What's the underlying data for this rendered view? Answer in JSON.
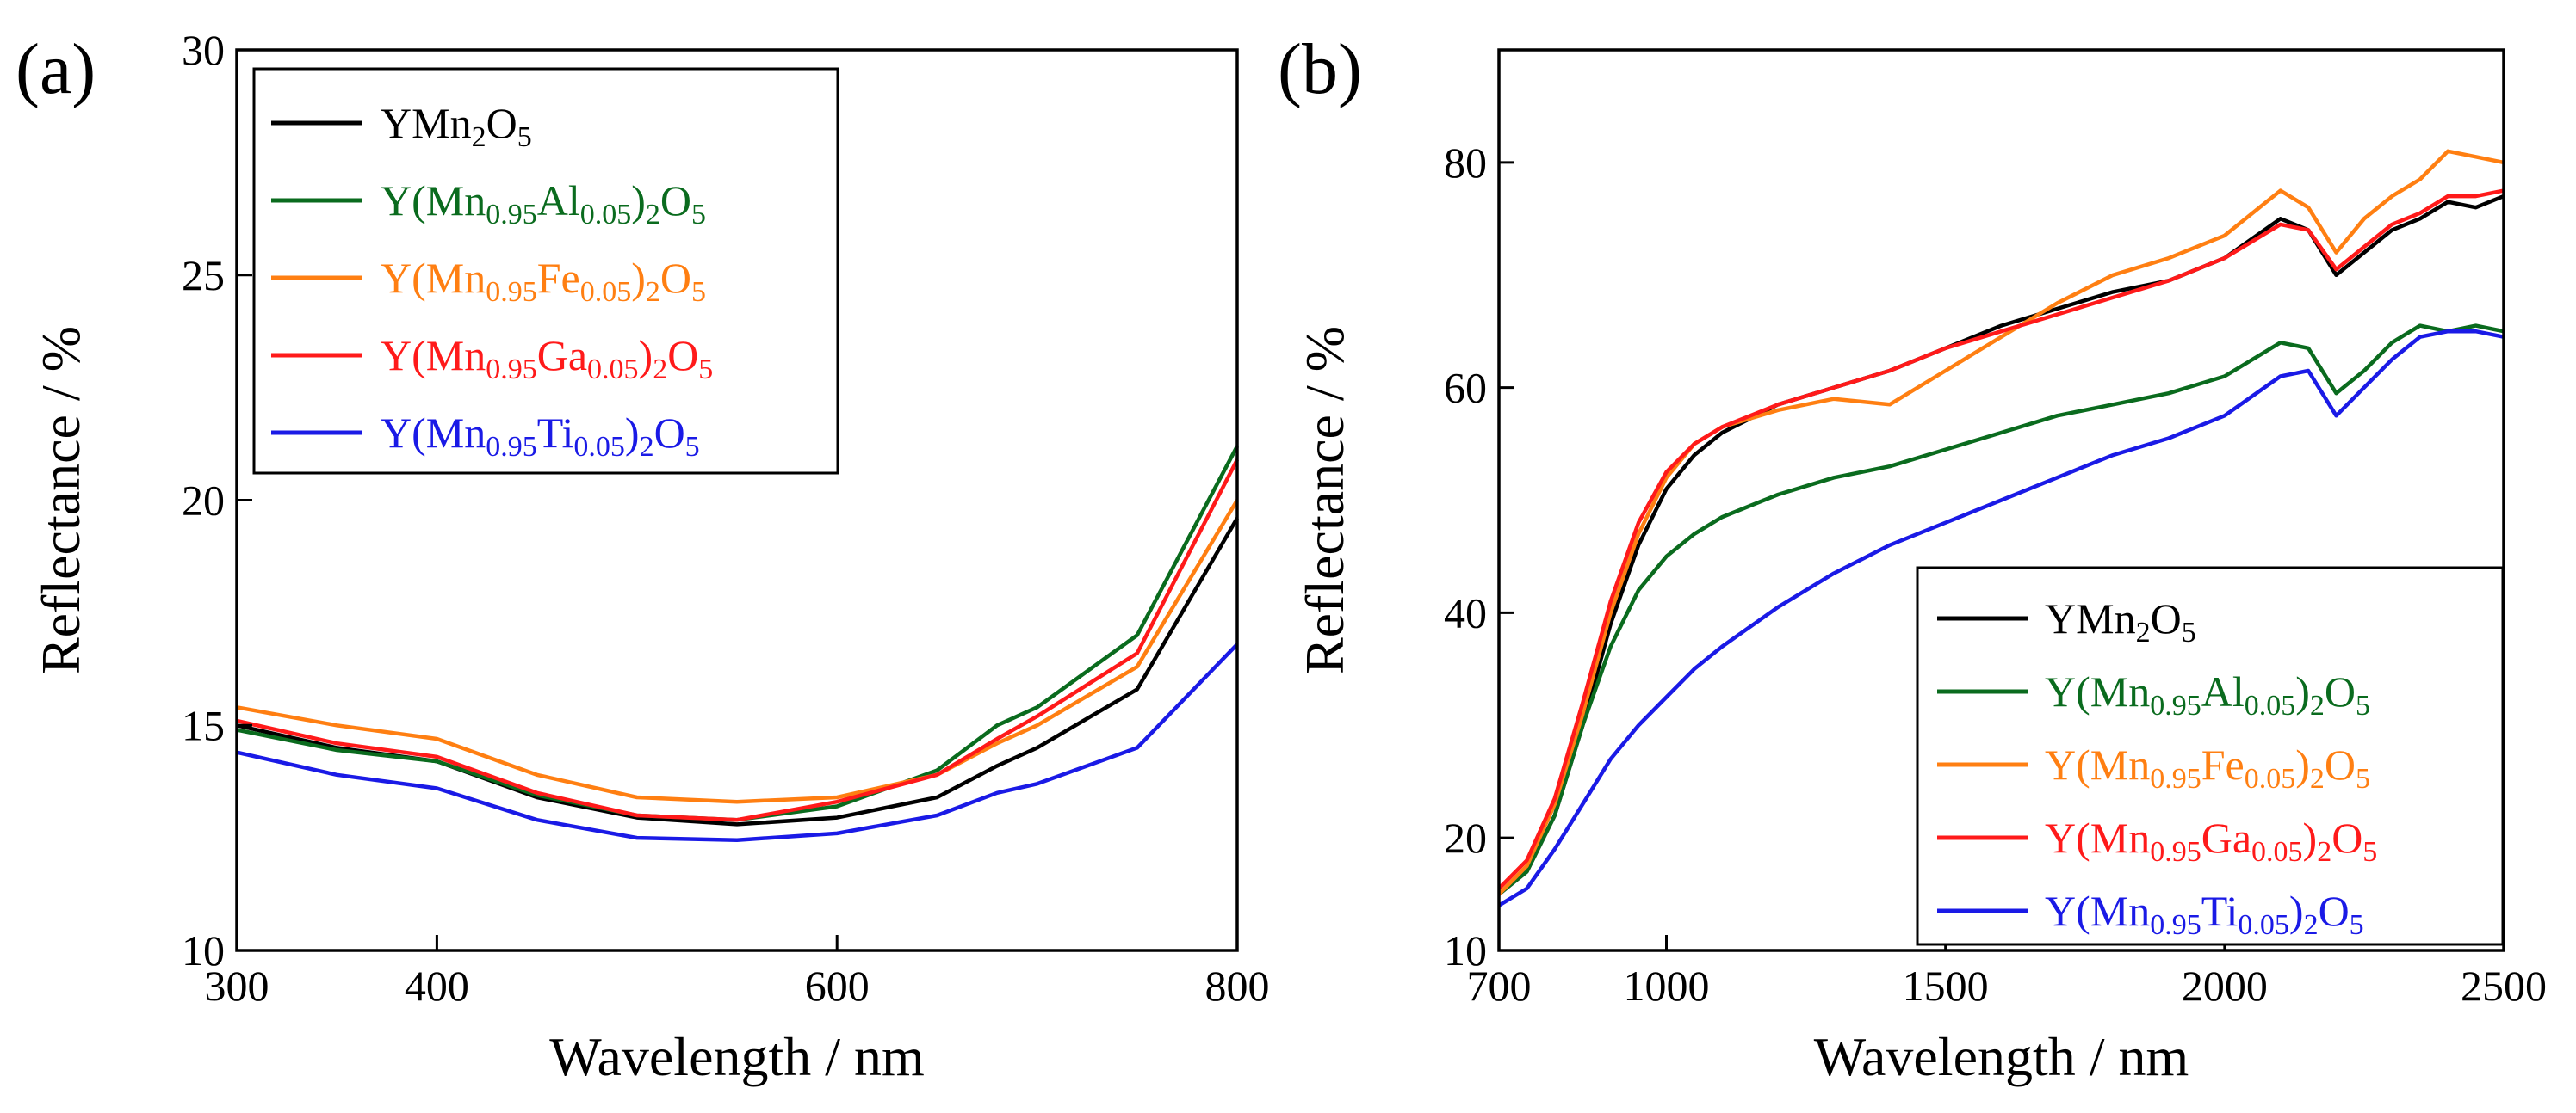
{
  "chart_data": [
    {
      "panel": "(a)",
      "type": "line",
      "xlabel": "Wavelength / nm",
      "ylabel": "Reflectance / %",
      "xlim": [
        300,
        800
      ],
      "ylim": [
        10,
        30
      ],
      "xticks": [
        300,
        400,
        600,
        800
      ],
      "yticks": [
        10,
        15,
        20,
        25,
        30
      ],
      "grid": false,
      "legend_position": "top-left",
      "series": [
        {
          "name": "YMn2O5",
          "base": "YMn",
          "sub": "2",
          "mid": "O",
          "sub2": "5",
          "color": "#000000",
          "x": [
            300,
            350,
            400,
            450,
            500,
            550,
            600,
            650,
            680,
            700,
            750,
            800
          ],
          "y": [
            15.0,
            14.5,
            14.2,
            13.4,
            12.95,
            12.8,
            12.95,
            13.4,
            14.1,
            14.5,
            15.8,
            19.6
          ]
        },
        {
          "name": "Y(Mn0.95Al0.05)2O5",
          "base": "Y(Mn",
          "sub": "0.95",
          "mid": "Al",
          "sub2": "0.05",
          "tail": ")",
          "sub3": "2",
          "end": "O",
          "sub4": "5",
          "color": "#0a6b1e",
          "x": [
            300,
            350,
            400,
            450,
            500,
            550,
            600,
            650,
            680,
            700,
            750,
            800
          ],
          "y": [
            14.9,
            14.45,
            14.2,
            13.45,
            13.0,
            12.9,
            13.2,
            14.0,
            15.0,
            15.4,
            17.0,
            21.2
          ]
        },
        {
          "name": "Y(Mn0.95Fe0.05)2O5",
          "base": "Y(Mn",
          "sub": "0.95",
          "mid": "Fe",
          "sub2": "0.05",
          "tail": ")",
          "sub3": "2",
          "end": "O",
          "sub4": "5",
          "color": "#ff7f12",
          "x": [
            300,
            350,
            400,
            450,
            500,
            550,
            600,
            650,
            680,
            700,
            750,
            800
          ],
          "y": [
            15.4,
            15.0,
            14.7,
            13.9,
            13.4,
            13.3,
            13.4,
            13.9,
            14.6,
            15.0,
            16.3,
            20.0
          ]
        },
        {
          "name": "Y(Mn0.95Ga0.05)2O5",
          "base": "Y(Mn",
          "sub": "0.95",
          "mid": "Ga",
          "sub2": "0.05",
          "tail": ")",
          "sub3": "2",
          "end": "O",
          "sub4": "5",
          "color": "#ff1a1a",
          "x": [
            300,
            350,
            400,
            450,
            500,
            550,
            600,
            650,
            680,
            700,
            750,
            800
          ],
          "y": [
            15.1,
            14.6,
            14.3,
            13.5,
            13.0,
            12.9,
            13.3,
            13.9,
            14.7,
            15.2,
            16.6,
            20.9
          ]
        },
        {
          "name": "Y(Mn0.95Ti0.05)2O5",
          "base": "Y(Mn",
          "sub": "0.95",
          "mid": "Ti",
          "sub2": "0.05",
          "tail": ")",
          "sub3": "2",
          "end": "O",
          "sub4": "5",
          "color": "#1a1ae6",
          "x": [
            300,
            350,
            400,
            450,
            500,
            550,
            600,
            650,
            680,
            700,
            750,
            800
          ],
          "y": [
            14.4,
            13.9,
            13.6,
            12.9,
            12.5,
            12.45,
            12.6,
            13.0,
            13.5,
            13.7,
            14.5,
            16.8
          ]
        }
      ]
    },
    {
      "panel": "(b)",
      "type": "line",
      "xlabel": "Wavelength / nm",
      "ylabel": "Reflectance / %",
      "xlim": [
        700,
        2500
      ],
      "ylim": [
        10,
        90
      ],
      "xticks": [
        700,
        1000,
        1500,
        2000,
        2500
      ],
      "yticks": [
        10,
        20,
        40,
        60,
        80
      ],
      "grid": false,
      "legend_position": "bottom-right",
      "series": [
        {
          "name": "YMn2O5",
          "base": "YMn",
          "sub": "2",
          "mid": "O",
          "sub2": "5",
          "color": "#000000",
          "x": [
            700,
            750,
            800,
            850,
            900,
            950,
            1000,
            1050,
            1100,
            1200,
            1300,
            1400,
            1500,
            1600,
            1700,
            1800,
            1900,
            2000,
            2100,
            2150,
            2200,
            2250,
            2300,
            2350,
            2400,
            2450,
            2500
          ],
          "y": [
            15,
            17,
            22,
            30,
            39,
            46,
            51,
            54,
            56,
            58.5,
            60,
            61.5,
            63.5,
            65.5,
            67,
            68.5,
            69.5,
            71.5,
            75,
            74,
            70,
            72,
            74,
            75,
            76.5,
            76,
            77
          ]
        },
        {
          "name": "Y(Mn0.95Al0.05)2O5",
          "base": "Y(Mn",
          "sub": "0.95",
          "mid": "Al",
          "sub2": "0.05",
          "tail": ")",
          "sub3": "2",
          "end": "O",
          "sub4": "5",
          "color": "#0a6b1e",
          "x": [
            700,
            750,
            800,
            850,
            900,
            950,
            1000,
            1050,
            1100,
            1200,
            1300,
            1400,
            1500,
            1600,
            1700,
            1800,
            1900,
            2000,
            2100,
            2150,
            2200,
            2250,
            2300,
            2350,
            2400,
            2450,
            2500
          ],
          "y": [
            15,
            17,
            22,
            30,
            37,
            42,
            45,
            47,
            48.5,
            50.5,
            52,
            53,
            54.5,
            56,
            57.5,
            58.5,
            59.5,
            61,
            64,
            63.5,
            59.5,
            61.5,
            64,
            65.5,
            65,
            65.5,
            65
          ]
        },
        {
          "name": "Y(Mn0.95Fe0.05)2O5",
          "base": "Y(Mn",
          "sub": "0.95",
          "mid": "Fe",
          "sub2": "0.05",
          "tail": ")",
          "sub3": "2",
          "end": "O",
          "sub4": "5",
          "color": "#ff7f12",
          "x": [
            700,
            750,
            800,
            850,
            900,
            950,
            1000,
            1050,
            1100,
            1200,
            1300,
            1400,
            1500,
            1600,
            1700,
            1800,
            1900,
            2000,
            2100,
            2150,
            2200,
            2250,
            2300,
            2350,
            2400,
            2450,
            2500
          ],
          "y": [
            15,
            17.5,
            23,
            31,
            40,
            47,
            52,
            55,
            56.5,
            58,
            59,
            58.5,
            61.5,
            64.5,
            67.5,
            70,
            71.5,
            73.5,
            77.5,
            76,
            72,
            75,
            77,
            78.5,
            81,
            80.5,
            80
          ]
        },
        {
          "name": "Y(Mn0.95Ga0.05)2O5",
          "base": "Y(Mn",
          "sub": "0.95",
          "mid": "Ga",
          "sub2": "0.05",
          "tail": ")",
          "sub3": "2",
          "end": "O",
          "sub4": "5",
          "color": "#ff1a1a",
          "x": [
            700,
            750,
            800,
            850,
            900,
            950,
            1000,
            1050,
            1100,
            1200,
            1300,
            1400,
            1500,
            1600,
            1700,
            1800,
            1900,
            2000,
            2100,
            2150,
            2200,
            2250,
            2300,
            2350,
            2400,
            2450,
            2500
          ],
          "y": [
            15.5,
            18,
            23.5,
            32,
            41,
            48,
            52.5,
            55,
            56.5,
            58.5,
            60,
            61.5,
            63.5,
            65,
            66.5,
            68,
            69.5,
            71.5,
            74.5,
            74,
            70.5,
            72.5,
            74.5,
            75.5,
            77,
            77,
            77.5
          ]
        },
        {
          "name": "Y(Mn0.95Ti0.05)2O5",
          "base": "Y(Mn",
          "sub": "0.95",
          "mid": "Ti",
          "sub2": "0.05",
          "tail": ")",
          "sub3": "2",
          "end": "O",
          "sub4": "5",
          "color": "#1a1ae6",
          "x": [
            700,
            750,
            800,
            850,
            900,
            950,
            1000,
            1050,
            1100,
            1200,
            1300,
            1400,
            1500,
            1600,
            1700,
            1800,
            1900,
            2000,
            2100,
            2150,
            2200,
            2250,
            2300,
            2350,
            2400,
            2450,
            2500
          ],
          "y": [
            14,
            15.5,
            19,
            23,
            27,
            30,
            32.5,
            35,
            37,
            40.5,
            43.5,
            46,
            48,
            50,
            52,
            54,
            55.5,
            57.5,
            61,
            61.5,
            57.5,
            60,
            62.5,
            64.5,
            65,
            65,
            64.5
          ]
        }
      ]
    }
  ]
}
